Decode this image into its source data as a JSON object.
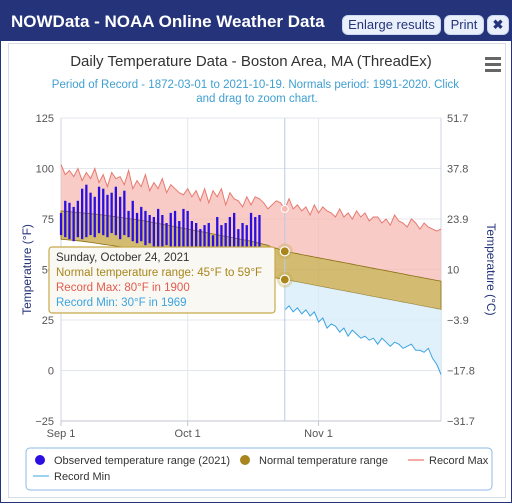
{
  "window": {
    "title": "NOWData - NOAA Online Weather Data",
    "buttons": {
      "enlarge": "Enlarge results",
      "print": "Print",
      "close": "✖"
    }
  },
  "chart_data": {
    "type": "area",
    "title": "Daily Temperature Data - Boston Area, MA (ThreadEx)",
    "subtitle": "Period of Record - 1872-03-01 to 2021-10-19. Normals period: 1991-2020. Click and drag to zoom chart.",
    "ylabel": "Temperature (°F)",
    "ylabel_right": "Temperature (°C)",
    "ylim": [
      -25,
      125
    ],
    "y_ticks": [
      "125",
      "100",
      "75",
      "50",
      "25",
      "0",
      "−25"
    ],
    "y_ticks_right": [
      "51.7",
      "37.8",
      "23.9",
      "10",
      "−3.9",
      "−17.8",
      "−31.7"
    ],
    "x_ticks": [
      "Sep 1",
      "Oct 1",
      "Nov 1"
    ],
    "x_range": [
      "2021-09-01",
      "2021-11-30"
    ],
    "legend": [
      {
        "name": "Observed temperature range (2021)",
        "color": "#2b0fe0"
      },
      {
        "name": "Normal temperature range",
        "color": "#a8861c"
      },
      {
        "name": "Record Max",
        "color": "#f08c84"
      },
      {
        "name": "Record Min",
        "color": "#7cc3ec"
      }
    ],
    "tooltip": {
      "date": "Sunday, October 24, 2021",
      "normal": "Normal temperature range: 45°F to 59°F",
      "record_max": "Record Max: 80°F in 1900",
      "record_min": "Record Min: 30°F in 1969"
    },
    "highlight_day": 53,
    "record_max": [
      102,
      97,
      99,
      96,
      100,
      94,
      98,
      95,
      100,
      93,
      97,
      91,
      98,
      95,
      96,
      92,
      99,
      90,
      94,
      91,
      97,
      89,
      93,
      90,
      95,
      88,
      92,
      90,
      88,
      87,
      90,
      86,
      89,
      84,
      90,
      83,
      89,
      86,
      90,
      82,
      88,
      85,
      84,
      81,
      86,
      82,
      86,
      85,
      83,
      80,
      82,
      84,
      83,
      80,
      85,
      80,
      82,
      79,
      81,
      77,
      82,
      78,
      81,
      79,
      78,
      76,
      80,
      76,
      78,
      75,
      79,
      76,
      78,
      74,
      76,
      76,
      73,
      75,
      72,
      77,
      74,
      73,
      71,
      75,
      73,
      70,
      73,
      71,
      70,
      69,
      70
    ],
    "record_min": [
      null,
      null,
      null,
      null,
      null,
      null,
      null,
      null,
      null,
      null,
      null,
      null,
      null,
      null,
      null,
      null,
      null,
      null,
      null,
      null,
      null,
      null,
      null,
      null,
      null,
      null,
      null,
      null,
      null,
      null,
      null,
      null,
      null,
      null,
      null,
      null,
      null,
      null,
      null,
      null,
      null,
      null,
      null,
      null,
      null,
      null,
      null,
      null,
      null,
      null,
      null,
      null,
      null,
      30,
      32,
      29,
      31,
      28,
      30,
      27,
      29,
      24,
      26,
      21,
      23,
      22,
      19,
      21,
      17,
      20,
      18,
      16,
      17,
      15,
      16,
      13,
      16,
      14,
      12,
      14,
      13,
      11,
      12,
      13,
      10,
      10,
      9,
      11,
      6,
      3,
      -2
    ],
    "normal_high": [
      79,
      78.8,
      78.6,
      78.4,
      78.2,
      78,
      77.8,
      77.6,
      77.4,
      77.2,
      77,
      76.7,
      76.4,
      76.1,
      75.8,
      75.5,
      75.2,
      74.9,
      74.6,
      74.3,
      74,
      73.6,
      73.2,
      72.8,
      72.4,
      72,
      71.6,
      71.2,
      70.8,
      70.4,
      70,
      69.6,
      69.2,
      68.8,
      68.4,
      68,
      67.6,
      67.2,
      66.8,
      66.4,
      66,
      65.6,
      65.2,
      64.8,
      64.4,
      64,
      63.5,
      63,
      62.5,
      62,
      61,
      60.5,
      59.8,
      59,
      58.6,
      58.2,
      57.8,
      57.4,
      57,
      56.6,
      56.2,
      55.8,
      55.4,
      55,
      54.6,
      54.2,
      53.8,
      53.4,
      53,
      52.6,
      52.2,
      51.8,
      51.4,
      51,
      50.6,
      50.2,
      49.8,
      49.4,
      49,
      48.6,
      48.2,
      47.8,
      47.4,
      47,
      46.6,
      46.2,
      45.8,
      45.4,
      45,
      44.6,
      44.2
    ],
    "normal_low": [
      65,
      64.8,
      64.6,
      64.4,
      64.2,
      64,
      63.7,
      63.4,
      63.1,
      62.8,
      62.5,
      62.2,
      61.9,
      61.6,
      61.3,
      61,
      60.6,
      60.2,
      59.8,
      59.4,
      59,
      58.6,
      58.2,
      57.8,
      57.4,
      57,
      56.6,
      56.2,
      55.8,
      55.4,
      55,
      54.6,
      54.2,
      53.8,
      53.4,
      53,
      52.6,
      52.2,
      51.8,
      51.4,
      51,
      50.5,
      50,
      49.5,
      49,
      48.5,
      48,
      47.5,
      47,
      46.6,
      46.2,
      45.8,
      45.4,
      45,
      44.6,
      44.2,
      43.8,
      43.4,
      43,
      42.6,
      42.2,
      41.8,
      41.4,
      41,
      40.6,
      40.2,
      39.8,
      39.4,
      39,
      38.6,
      38.2,
      37.8,
      37.4,
      37,
      36.6,
      36.2,
      35.8,
      35.4,
      35,
      34.6,
      34.2,
      33.8,
      33.4,
      33,
      32.6,
      32.2,
      31.8,
      31.4,
      31,
      30.6,
      30.2
    ],
    "observed": [
      [
        67,
        78
      ],
      [
        66,
        84
      ],
      [
        65,
        83
      ],
      [
        64,
        81
      ],
      [
        66,
        84
      ],
      [
        65,
        90
      ],
      [
        66,
        92
      ],
      [
        67,
        88
      ],
      [
        66,
        86
      ],
      [
        68,
        91
      ],
      [
        67,
        90
      ],
      [
        66,
        87
      ],
      [
        68,
        88
      ],
      [
        67,
        91
      ],
      [
        65,
        86
      ],
      [
        67,
        89
      ],
      [
        66,
        79
      ],
      [
        64,
        84
      ],
      [
        63,
        78
      ],
      [
        64,
        81
      ],
      [
        62,
        79
      ],
      [
        63,
        77
      ],
      [
        61,
        76
      ],
      [
        60,
        80
      ],
      [
        61,
        77
      ],
      [
        62,
        73
      ],
      [
        58,
        78
      ],
      [
        60,
        79
      ],
      [
        58,
        74
      ],
      [
        59,
        80
      ],
      [
        57,
        79
      ],
      [
        55,
        74
      ],
      [
        57,
        73
      ],
      [
        56,
        70
      ],
      [
        55,
        72
      ],
      [
        54,
        73
      ],
      [
        53,
        67
      ],
      [
        54,
        76
      ],
      [
        50,
        72
      ],
      [
        51,
        73
      ],
      [
        55,
        76
      ],
      [
        56,
        78
      ],
      [
        50,
        70
      ],
      [
        53,
        73
      ],
      [
        52,
        72
      ],
      [
        57,
        78
      ],
      [
        54,
        76
      ],
      [
        56,
        77
      ]
    ]
  }
}
